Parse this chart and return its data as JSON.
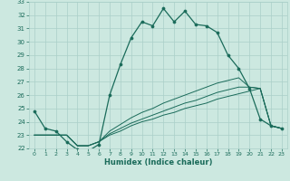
{
  "xlabel": "Humidex (Indice chaleur)",
  "background_color": "#cce8e0",
  "grid_color": "#aacfc8",
  "line_color": "#1a6b5a",
  "xlim": [
    -0.5,
    23.5
  ],
  "ylim": [
    22,
    33
  ],
  "yticks": [
    22,
    23,
    24,
    25,
    26,
    27,
    28,
    29,
    30,
    31,
    32,
    33
  ],
  "xticks": [
    0,
    1,
    2,
    3,
    4,
    5,
    6,
    7,
    8,
    9,
    10,
    11,
    12,
    13,
    14,
    15,
    16,
    17,
    18,
    19,
    20,
    21,
    22,
    23
  ],
  "series": {
    "main": {
      "x": [
        0,
        1,
        2,
        3,
        4,
        5,
        6,
        7,
        8,
        9,
        10,
        11,
        12,
        13,
        14,
        15,
        16,
        17,
        18,
        19,
        20,
        21,
        22,
        23
      ],
      "y": [
        24.8,
        23.5,
        23.3,
        22.5,
        21.9,
        21.8,
        22.3,
        26.0,
        28.3,
        30.3,
        31.5,
        31.2,
        32.5,
        31.5,
        32.3,
        31.3,
        31.2,
        30.7,
        29.0,
        28.0,
        26.5,
        24.2,
        23.7,
        23.5
      ]
    },
    "line2": {
      "x": [
        0,
        1,
        2,
        3,
        4,
        5,
        6,
        7,
        8,
        9,
        10,
        11,
        12,
        13,
        14,
        15,
        16,
        17,
        18,
        19,
        20,
        21,
        22,
        23
      ],
      "y": [
        23.0,
        23.0,
        23.0,
        23.0,
        22.2,
        22.2,
        22.5,
        23.0,
        23.3,
        23.7,
        24.0,
        24.2,
        24.5,
        24.7,
        25.0,
        25.2,
        25.4,
        25.7,
        25.9,
        26.1,
        26.3,
        26.5,
        23.7,
        23.5
      ]
    },
    "line3": {
      "x": [
        0,
        1,
        2,
        3,
        4,
        5,
        6,
        7,
        8,
        9,
        10,
        11,
        12,
        13,
        14,
        15,
        16,
        17,
        18,
        19,
        20,
        21,
        22,
        23
      ],
      "y": [
        23.0,
        23.0,
        23.0,
        23.0,
        22.2,
        22.2,
        22.5,
        23.1,
        23.5,
        23.9,
        24.2,
        24.5,
        24.8,
        25.1,
        25.4,
        25.6,
        25.9,
        26.2,
        26.4,
        26.6,
        26.6,
        26.5,
        23.7,
        23.5
      ]
    },
    "line4": {
      "x": [
        0,
        1,
        2,
        3,
        4,
        5,
        6,
        7,
        8,
        9,
        10,
        11,
        12,
        13,
        14,
        15,
        16,
        17,
        18,
        19,
        20,
        21,
        22,
        23
      ],
      "y": [
        23.0,
        23.0,
        23.0,
        23.0,
        22.2,
        22.2,
        22.5,
        23.3,
        23.8,
        24.3,
        24.7,
        25.0,
        25.4,
        25.7,
        26.0,
        26.3,
        26.6,
        26.9,
        27.1,
        27.3,
        26.6,
        26.5,
        23.7,
        23.5
      ]
    }
  }
}
